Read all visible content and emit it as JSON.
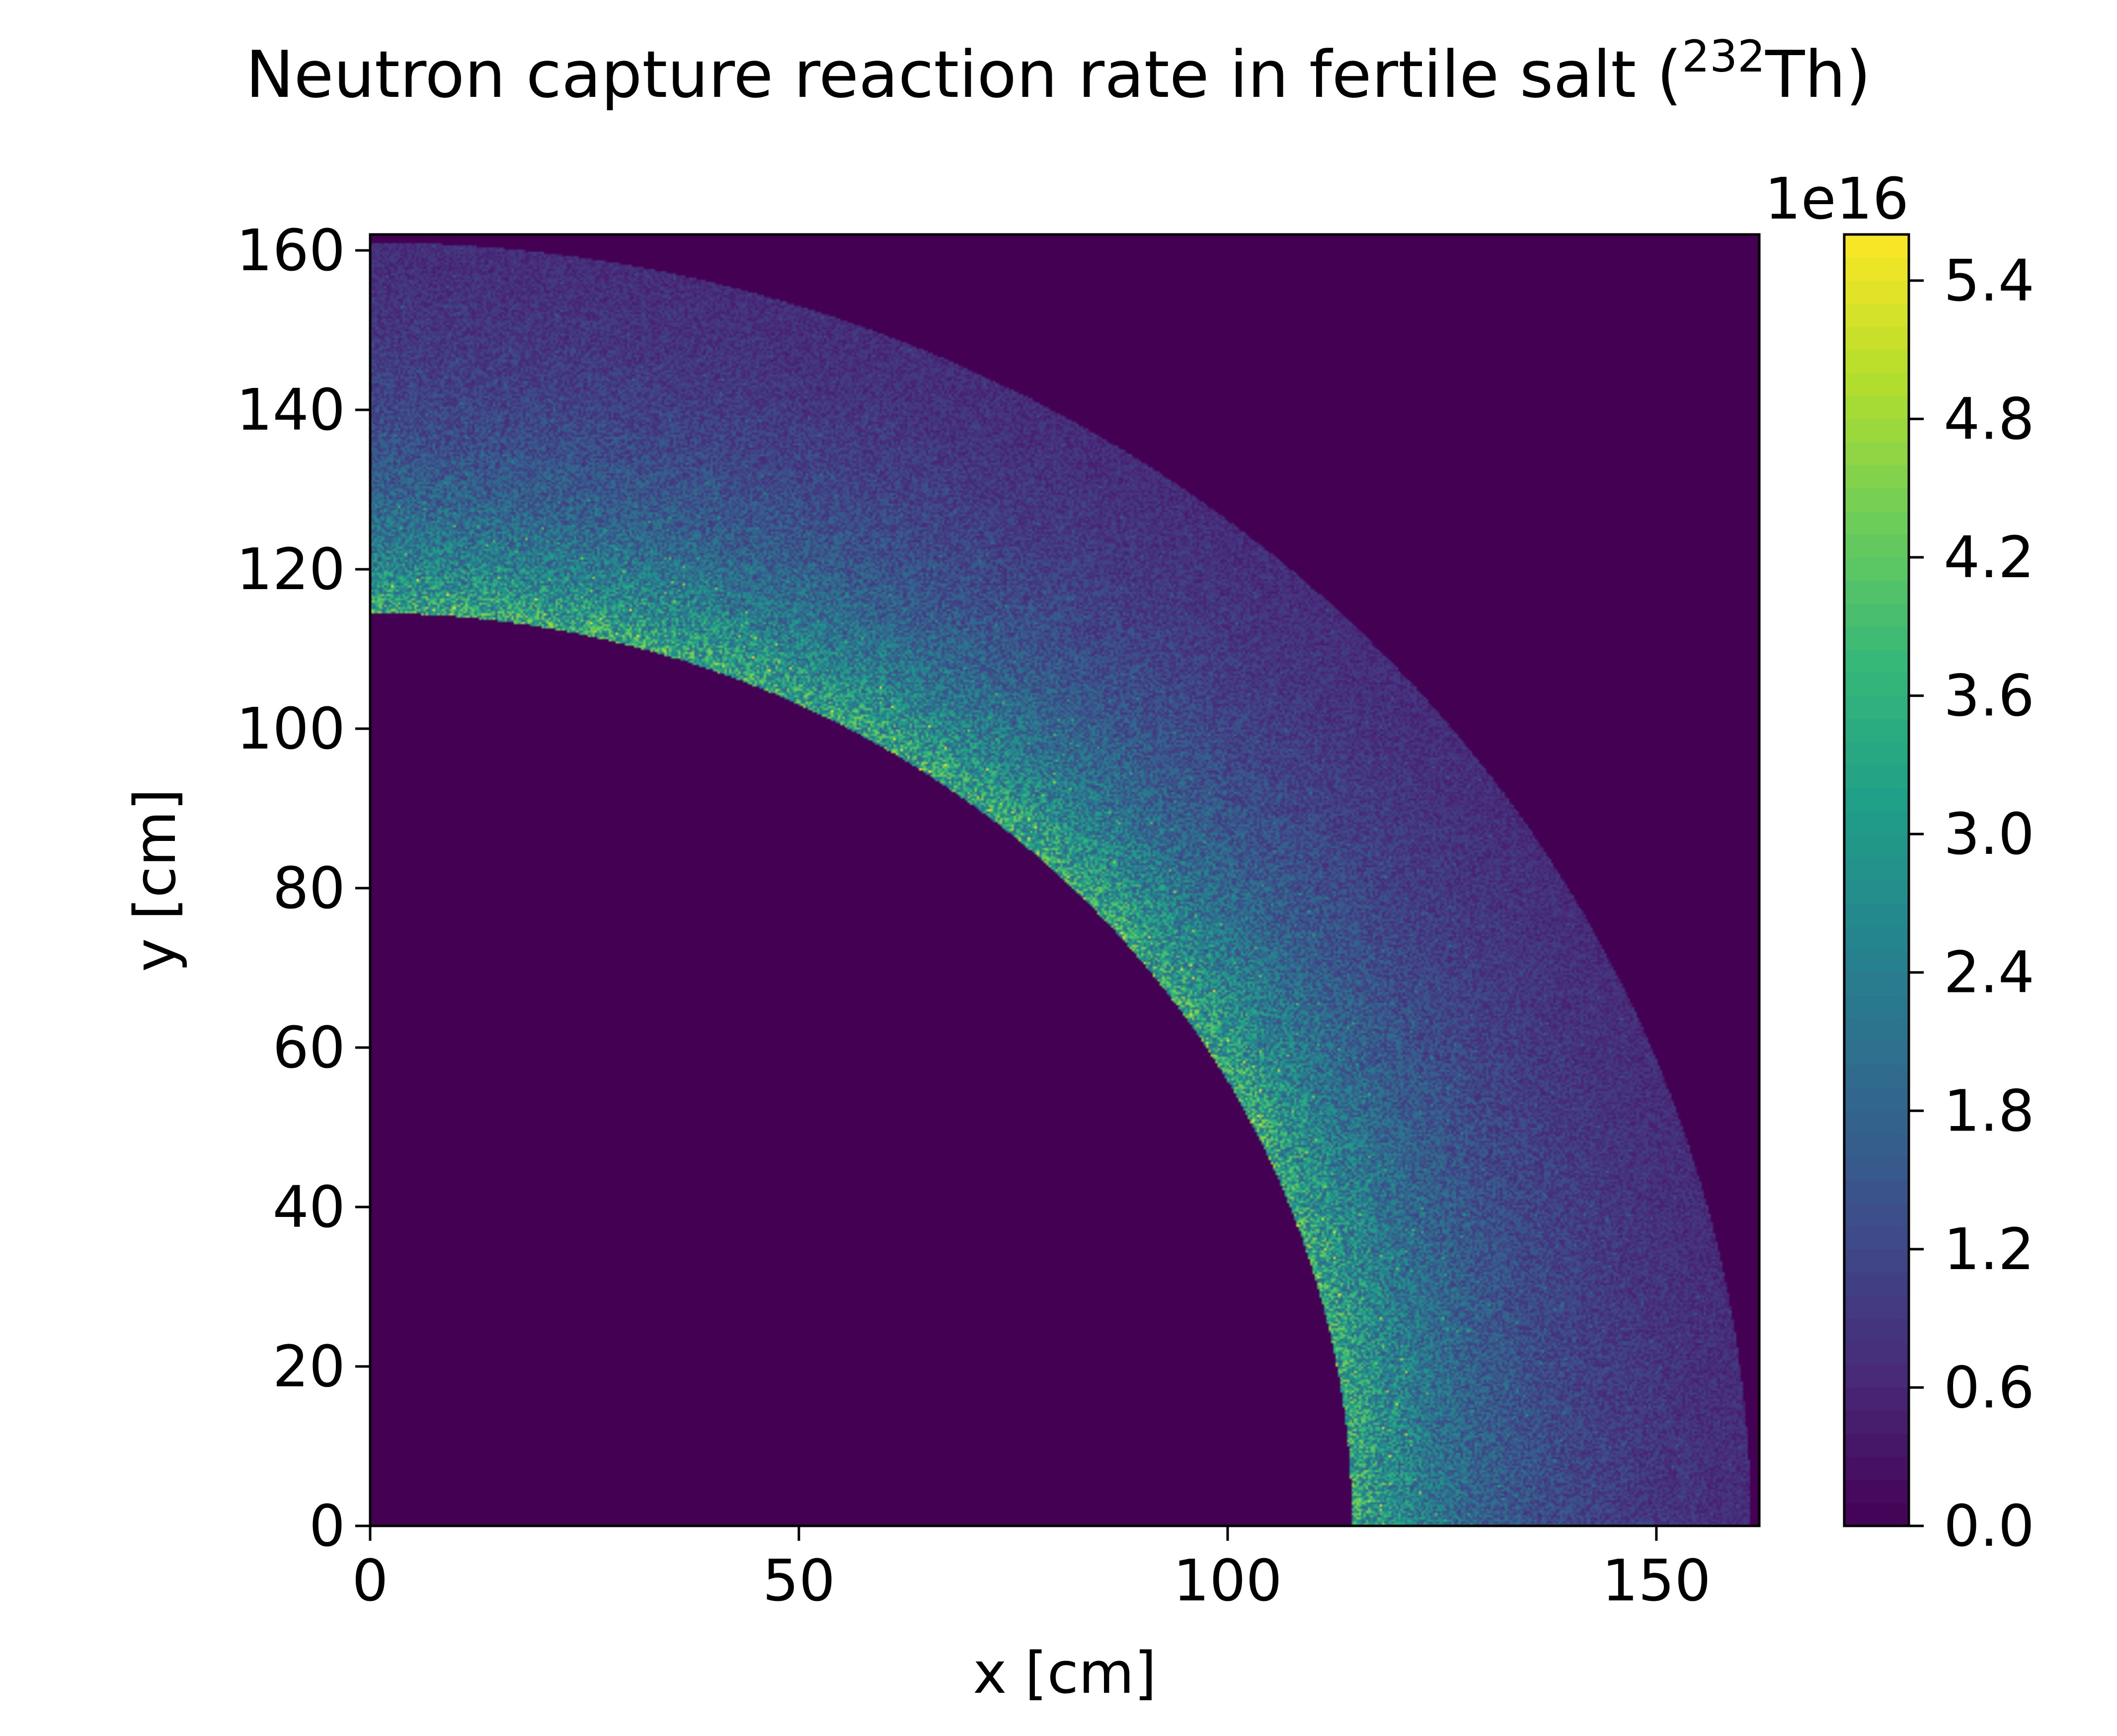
{
  "chart_data": {
    "type": "heatmap",
    "title": "Neutron capture reaction rate in fertile salt (",
    "title_superscript": "232",
    "title_suffix": "Th)",
    "xlabel": "x [cm]",
    "ylabel": "y [cm]",
    "xlim": [
      0,
      162
    ],
    "ylim": [
      0,
      162
    ],
    "xticks": [
      0,
      50,
      100,
      150
    ],
    "yticks": [
      0,
      20,
      40,
      60,
      80,
      100,
      120,
      140,
      160
    ],
    "colormap": "viridis",
    "colorbar": {
      "range": [
        0,
        5.6
      ],
      "ticks": [
        0.0,
        0.6,
        1.2,
        1.8,
        2.4,
        3.0,
        3.6,
        4.2,
        4.8,
        5.4
      ],
      "tick_labels": [
        "0.0",
        "0.6",
        "1.2",
        "1.8",
        "2.4",
        "3.0",
        "3.6",
        "4.2",
        "4.8",
        "5.4"
      ],
      "offset_label": "1e16",
      "levels": 56
    },
    "field": {
      "description_shape": "quarter annulus",
      "inner_radius": 114.5,
      "outer_radius": 161,
      "peak_value_at_inner_radius": 3.4,
      "value_near_outer_radius": 0.5,
      "outside_value": 0.0
    },
    "grid": false
  }
}
